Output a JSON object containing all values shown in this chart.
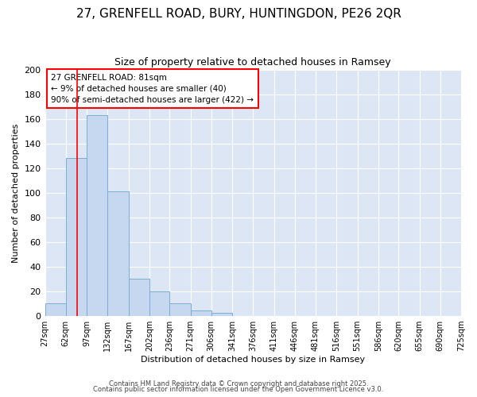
{
  "title1": "27, GRENFELL ROAD, BURY, HUNTINGDON, PE26 2QR",
  "title2": "Size of property relative to detached houses in Ramsey",
  "xlabel": "Distribution of detached houses by size in Ramsey",
  "ylabel": "Number of detached properties",
  "bin_edges": [
    27,
    62,
    97,
    132,
    167,
    202,
    236,
    271,
    306,
    341,
    376,
    411,
    446,
    481,
    516,
    551,
    586,
    620,
    655,
    690,
    725
  ],
  "bar_heights": [
    10,
    128,
    163,
    101,
    30,
    20,
    10,
    4,
    2,
    0,
    0,
    0,
    0,
    0,
    0,
    0,
    0,
    0,
    0,
    0
  ],
  "bar_color": "#c5d8f0",
  "bar_edge_color": "#7aadd4",
  "vline_x": 81,
  "vline_color": "red",
  "vline_linewidth": 1.2,
  "annotation_title": "27 GRENFELL ROAD: 81sqm",
  "annotation_line2": "← 9% of detached houses are smaller (40)",
  "annotation_line3": "90% of semi-detached houses are larger (422) →",
  "ylim": [
    0,
    200
  ],
  "yticks": [
    0,
    20,
    40,
    60,
    80,
    100,
    120,
    140,
    160,
    180,
    200
  ],
  "tick_labels": [
    "27sqm",
    "62sqm",
    "97sqm",
    "132sqm",
    "167sqm",
    "202sqm",
    "236sqm",
    "271sqm",
    "306sqm",
    "341sqm",
    "376sqm",
    "411sqm",
    "446sqm",
    "481sqm",
    "516sqm",
    "551sqm",
    "586sqm",
    "620sqm",
    "655sqm",
    "690sqm",
    "725sqm"
  ],
  "footer1": "Contains HM Land Registry data © Crown copyright and database right 2025.",
  "footer2": "Contains public sector information licensed under the Open Government Licence v3.0.",
  "fig_bg_color": "#ffffff",
  "plot_bg_color": "#dce6f5",
  "grid_color": "#ffffff",
  "title1_fontsize": 11,
  "title2_fontsize": 9,
  "ylabel_fontsize": 8,
  "xlabel_fontsize": 8,
  "ytick_fontsize": 8,
  "xtick_fontsize": 7,
  "ann_fontsize": 7.5,
  "footer_fontsize": 6
}
